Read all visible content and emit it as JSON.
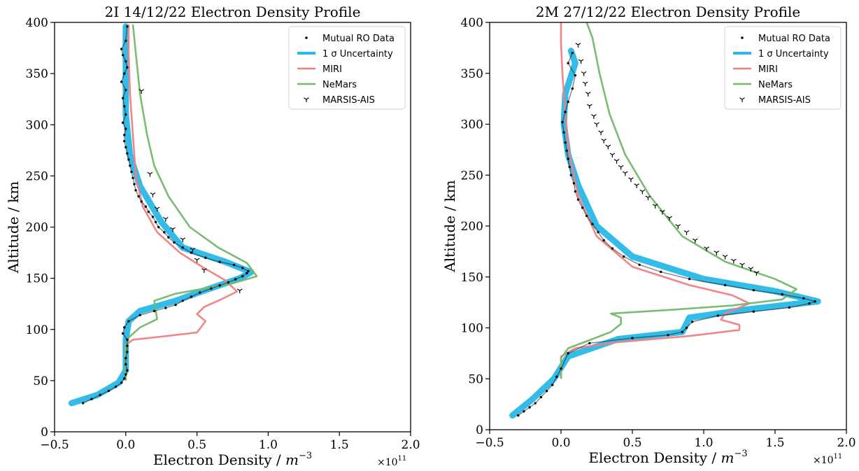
{
  "chart_data": [
    {
      "type": "line",
      "title": "2I 14/12/22 Electron Density Profile",
      "xlabel": "Electron Density / m^-3",
      "ylabel": "Altitude / km",
      "xlim": [
        -0.5,
        2.0
      ],
      "ylim": [
        0,
        400
      ],
      "x_multiplier": "×10^11",
      "xticks": [
        "-0.5",
        "0.0",
        "0.5",
        "1.0",
        "1.5",
        "2.0"
      ],
      "yticks": [
        "0",
        "50",
        "100",
        "150",
        "200",
        "250",
        "300",
        "350",
        "400"
      ],
      "grid": false,
      "legend_position": "top-right",
      "legend": [
        "Mutual RO Data",
        "1 σ Uncertainty",
        "MIRI",
        "NeMars",
        "MARSIS-AIS"
      ],
      "series": [
        {
          "name": "Mutual RO Data",
          "style": "points",
          "color": "#000000",
          "x": [
            -0.3,
            -0.24,
            -0.18,
            -0.12,
            -0.07,
            -0.03,
            -0.01,
            0.0,
            0.01,
            0.0,
            0.0,
            0.01,
            0.01,
            0.01,
            -0.02,
            -0.01,
            0.02,
            0.1,
            0.2,
            0.28,
            0.35,
            0.4,
            0.46,
            0.52,
            0.6,
            0.66,
            0.72,
            0.77,
            0.82,
            0.85,
            0.86,
            0.82,
            0.76,
            0.66,
            0.56,
            0.46,
            0.4,
            0.34,
            0.3,
            0.27,
            0.23,
            0.21,
            0.19,
            0.16,
            0.14,
            0.11,
            0.09,
            0.07,
            0.06,
            0.05,
            0.04,
            0.03,
            0.02,
            0.01,
            0.0,
            -0.01,
            -0.01,
            0.0,
            -0.02,
            0.0,
            -0.01,
            -0.02,
            0.0,
            -0.03,
            -0.01,
            0.01,
            0.0,
            -0.02,
            -0.03,
            0.0,
            0.01
          ],
          "y": [
            28,
            32,
            36,
            40,
            44,
            48,
            52,
            56,
            60,
            66,
            72,
            78,
            84,
            90,
            96,
            102,
            108,
            114,
            118,
            121,
            124,
            128,
            132,
            136,
            140,
            143,
            146,
            149,
            152,
            155,
            157,
            160,
            163,
            166,
            170,
            175,
            180,
            185,
            190,
            195,
            200,
            205,
            210,
            215,
            220,
            225,
            230,
            236,
            242,
            248,
            254,
            260,
            266,
            272,
            278,
            284,
            290,
            296,
            302,
            310,
            318,
            326,
            334,
            342,
            350,
            356,
            362,
            368,
            374,
            382,
            396
          ]
        },
        {
          "name": "1 σ Uncertainty",
          "style": "band",
          "color": "#29b8e8",
          "x": [
            -0.38,
            -0.2,
            -0.05,
            0.0,
            0.0,
            0.02,
            0.1,
            0.35,
            0.55,
            0.8,
            0.88,
            0.7,
            0.4,
            0.25,
            0.1,
            0.03,
            0.0,
            0.0,
            0.0
          ],
          "y": [
            28,
            36,
            48,
            60,
            90,
            108,
            118,
            128,
            138,
            150,
            156,
            166,
            180,
            205,
            240,
            270,
            310,
            350,
            396
          ]
        },
        {
          "name": "MIRI",
          "style": "line",
          "color": "#f08080",
          "x": [
            0.0,
            0.0,
            0.05,
            0.25,
            0.5,
            0.56,
            0.5,
            0.55,
            0.68,
            0.78,
            0.7,
            0.55,
            0.38,
            0.22,
            0.12,
            0.07,
            0.05,
            0.03,
            0.02,
            0.02
          ],
          "y": [
            50,
            85,
            90,
            93,
            97,
            108,
            115,
            122,
            130,
            137,
            148,
            160,
            175,
            195,
            220,
            250,
            290,
            330,
            370,
            398
          ]
        },
        {
          "name": "NeMars",
          "style": "line",
          "color": "#73b96a",
          "x": [
            0.0,
            0.0,
            0.02,
            0.1,
            0.22,
            0.2,
            0.35,
            0.55,
            0.75,
            0.92,
            0.85,
            0.65,
            0.45,
            0.3,
            0.2,
            0.15,
            0.1,
            0.07,
            0.05
          ],
          "y": [
            50,
            80,
            92,
            102,
            110,
            128,
            135,
            140,
            145,
            152,
            165,
            180,
            200,
            230,
            260,
            290,
            330,
            370,
            398
          ]
        },
        {
          "name": "MARSIS-AIS",
          "style": "markers",
          "color": "#000000",
          "x": [
            0.8,
            0.55,
            0.5,
            0.47,
            0.4,
            0.33,
            0.28,
            0.22,
            0.19,
            0.17,
            0.11
          ],
          "y": [
            138,
            158,
            168,
            178,
            188,
            198,
            208,
            218,
            232,
            252,
            333
          ]
        }
      ]
    },
    {
      "type": "line",
      "title": "2M 27/12/22 Electron Density Profile",
      "xlabel": "Electron Density / m^-3",
      "ylabel": "Altitude / km",
      "xlim": [
        -0.5,
        2.0
      ],
      "ylim": [
        0,
        400
      ],
      "x_multiplier": "×10^11",
      "xticks": [
        "-0.5",
        "0.0",
        "0.5",
        "1.0",
        "1.5",
        "2.0"
      ],
      "yticks": [
        "0",
        "50",
        "100",
        "150",
        "200",
        "250",
        "300",
        "350",
        "400"
      ],
      "grid": false,
      "legend_position": "top-right",
      "legend": [
        "Mutual RO Data",
        "1 σ Uncertainty",
        "MIRI",
        "NeMars",
        "MARSIS-AIS"
      ],
      "series": [
        {
          "name": "Mutual RO Data",
          "style": "points",
          "color": "#000000",
          "x": [
            -0.3,
            -0.26,
            -0.22,
            -0.18,
            -0.14,
            -0.1,
            -0.06,
            -0.03,
            0.0,
            0.05,
            0.2,
            0.5,
            0.75,
            0.85,
            0.88,
            0.92,
            1.1,
            1.35,
            1.6,
            1.74,
            1.78,
            1.7,
            1.55,
            1.35,
            1.15,
            0.9,
            0.7,
            0.55,
            0.44,
            0.36,
            0.3,
            0.26,
            0.22,
            0.18,
            0.15,
            0.12,
            0.1,
            0.09,
            0.07,
            0.06,
            0.05,
            0.04,
            0.03,
            0.02,
            0.01,
            0.03,
            0.05,
            0.08,
            0.1,
            0.05,
            0.08
          ],
          "y": [
            14,
            18,
            22,
            26,
            32,
            38,
            44,
            52,
            60,
            75,
            85,
            90,
            93,
            96,
            100,
            106,
            112,
            116,
            120,
            124,
            126,
            129,
            133,
            137,
            142,
            148,
            155,
            162,
            170,
            178,
            186,
            194,
            202,
            210,
            218,
            226,
            234,
            242,
            250,
            258,
            266,
            274,
            282,
            292,
            302,
            312,
            322,
            335,
            348,
            360,
            370
          ]
        },
        {
          "name": "1 σ Uncertainty",
          "style": "band",
          "color": "#29b8e8",
          "x": [
            -0.34,
            -0.2,
            -0.05,
            0.05,
            0.4,
            0.85,
            0.9,
            1.3,
            1.8,
            1.5,
            1.0,
            0.5,
            0.25,
            0.12,
            0.05,
            0.02,
            0.03,
            0.1,
            0.07
          ],
          "y": [
            14,
            30,
            50,
            72,
            89,
            96,
            110,
            118,
            126,
            136,
            148,
            170,
            200,
            240,
            270,
            300,
            330,
            360,
            372
          ]
        },
        {
          "name": "MIRI",
          "style": "line",
          "color": "#f08080",
          "x": [
            0.0,
            0.0,
            0.1,
            0.4,
            0.9,
            1.25,
            1.25,
            1.12,
            1.15,
            1.32,
            1.2,
            0.9,
            0.5,
            0.25,
            0.12,
            0.06,
            0.03,
            0.01,
            0.0,
            0.0
          ],
          "y": [
            50,
            72,
            80,
            86,
            92,
            98,
            103,
            108,
            114,
            124,
            132,
            142,
            160,
            190,
            230,
            270,
            310,
            350,
            380,
            400
          ]
        },
        {
          "name": "NeMars",
          "style": "line",
          "color": "#73b96a",
          "x": [
            0.0,
            0.0,
            0.05,
            0.2,
            0.35,
            0.42,
            0.42,
            0.35,
            0.8,
            1.2,
            1.55,
            1.65,
            1.5,
            1.15,
            0.85,
            0.62,
            0.45,
            0.34,
            0.27,
            0.22,
            0.18
          ],
          "y": [
            50,
            70,
            80,
            88,
            96,
            104,
            110,
            114,
            118,
            122,
            128,
            138,
            148,
            165,
            190,
            230,
            270,
            310,
            350,
            385,
            400
          ]
        },
        {
          "name": "MARSIS-AIS",
          "style": "markers",
          "color": "#000000",
          "x": [
            1.37,
            1.33,
            1.27,
            1.21,
            1.15,
            1.09,
            1.02,
            0.94,
            0.88,
            0.82,
            0.76,
            0.71,
            0.66,
            0.61,
            0.57,
            0.53,
            0.49,
            0.45,
            0.42,
            0.39,
            0.36,
            0.33,
            0.3,
            0.28,
            0.25,
            0.23,
            0.2,
            0.19,
            0.17,
            0.16,
            0.14,
            0.12
          ],
          "y": [
            154,
            158,
            162,
            166,
            170,
            174,
            178,
            186,
            194,
            200,
            208,
            214,
            220,
            228,
            234,
            240,
            246,
            252,
            258,
            264,
            270,
            278,
            284,
            292,
            300,
            308,
            318,
            330,
            340,
            350,
            362,
            378
          ]
        }
      ]
    }
  ]
}
